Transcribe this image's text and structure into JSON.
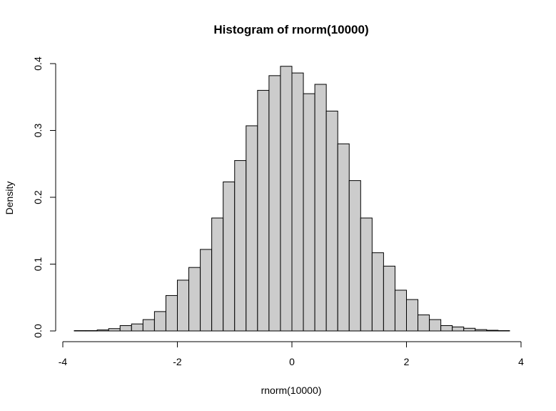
{
  "chart_data": {
    "type": "bar",
    "title": "Histogram of rnorm(10000)",
    "xlabel": "rnorm(10000)",
    "ylabel": "Density",
    "xlim": [
      -4,
      4
    ],
    "ylim": [
      0,
      0.4
    ],
    "x_ticks": [
      "-4",
      "-2",
      "0",
      "2",
      "4"
    ],
    "y_ticks": [
      "0.0",
      "0.1",
      "0.2",
      "0.3",
      "0.4"
    ],
    "bar_fill": "#cccccc",
    "bar_stroke": "#000000",
    "grid": false,
    "bin_width": 0.2,
    "bins_start": -3.8,
    "values": [
      0.0005,
      0.0005,
      0.0015,
      0.0035,
      0.008,
      0.0105,
      0.017,
      0.029,
      0.053,
      0.076,
      0.095,
      0.122,
      0.169,
      0.223,
      0.255,
      0.307,
      0.36,
      0.382,
      0.396,
      0.386,
      0.355,
      0.369,
      0.329,
      0.28,
      0.225,
      0.169,
      0.117,
      0.097,
      0.061,
      0.047,
      0.024,
      0.017,
      0.008,
      0.006,
      0.004,
      0.002,
      0.001,
      0.0005
    ]
  }
}
